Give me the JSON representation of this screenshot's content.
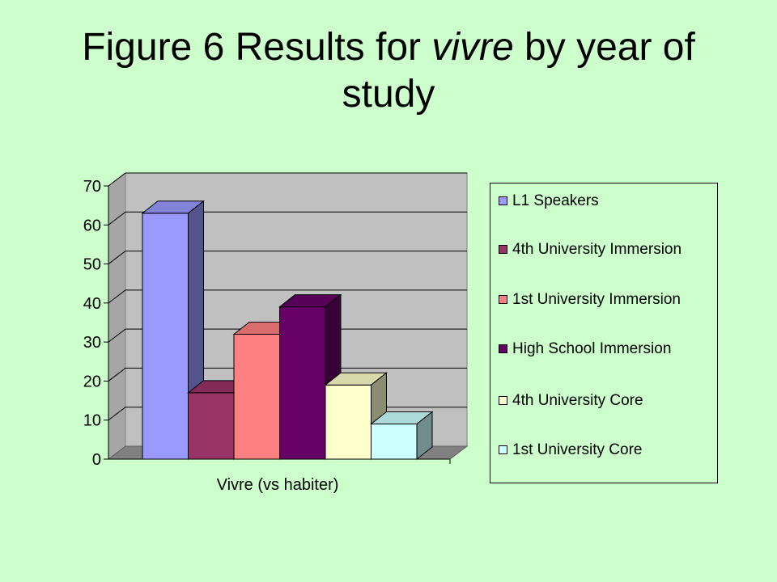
{
  "title": {
    "prefix": "Figure 6  Results for ",
    "italic": "vivre",
    "suffix": " by year of study"
  },
  "chart_data": {
    "type": "bar",
    "categories": [
      "Vivre (vs habiter)"
    ],
    "xlabel": "Vivre (vs habiter)",
    "ylabel": "",
    "ylim": [
      0,
      70
    ],
    "yticks": [
      0,
      10,
      20,
      30,
      40,
      50,
      60,
      70
    ],
    "grid": true,
    "legend_position": "right",
    "style": "3d-column",
    "series": [
      {
        "name": "L1 Speakers",
        "values": [
          63
        ],
        "color": "#9999ff"
      },
      {
        "name": "4th University Immersion",
        "values": [
          17
        ],
        "color": "#993366"
      },
      {
        "name": "1st University Immersion",
        "values": [
          32
        ],
        "color": "#ff8080"
      },
      {
        "name": "High School Immersion",
        "values": [
          39
        ],
        "color": "#660066"
      },
      {
        "name": "4th University Core",
        "values": [
          19
        ],
        "color": "#ffffcc"
      },
      {
        "name": "1st University Core",
        "values": [
          9
        ],
        "color": "#ccffff"
      }
    ]
  }
}
